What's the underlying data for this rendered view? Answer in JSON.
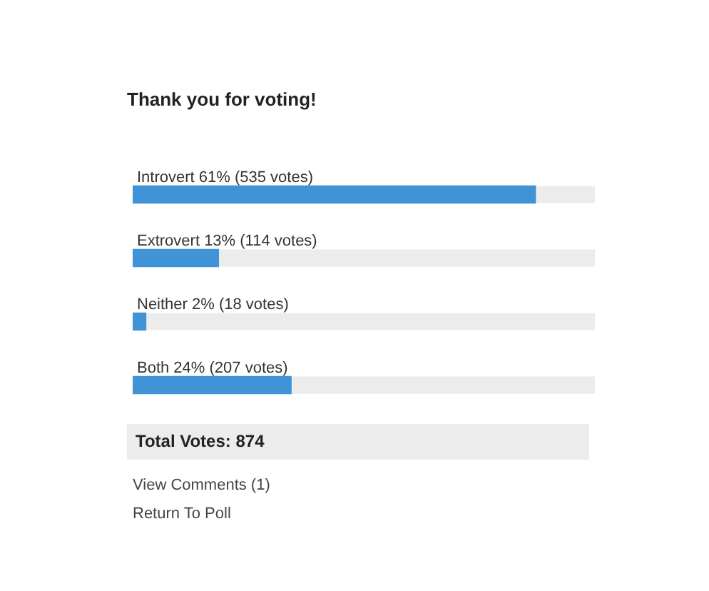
{
  "chart_data": {
    "type": "bar",
    "orientation": "horizontal",
    "title": "Thank you for voting!",
    "categories": [
      "Introvert",
      "Extrovert",
      "Neither",
      "Both"
    ],
    "values": [
      61,
      13,
      2,
      24
    ],
    "value_labels": [
      "61% (535 votes)",
      "13% (114 votes)",
      "2% (18 votes)",
      "24% (207 votes)"
    ],
    "color": "#3f93d6",
    "annotations": [
      "Total Votes: 874",
      "View Comments (1)",
      "Return To Poll"
    ]
  }
}
